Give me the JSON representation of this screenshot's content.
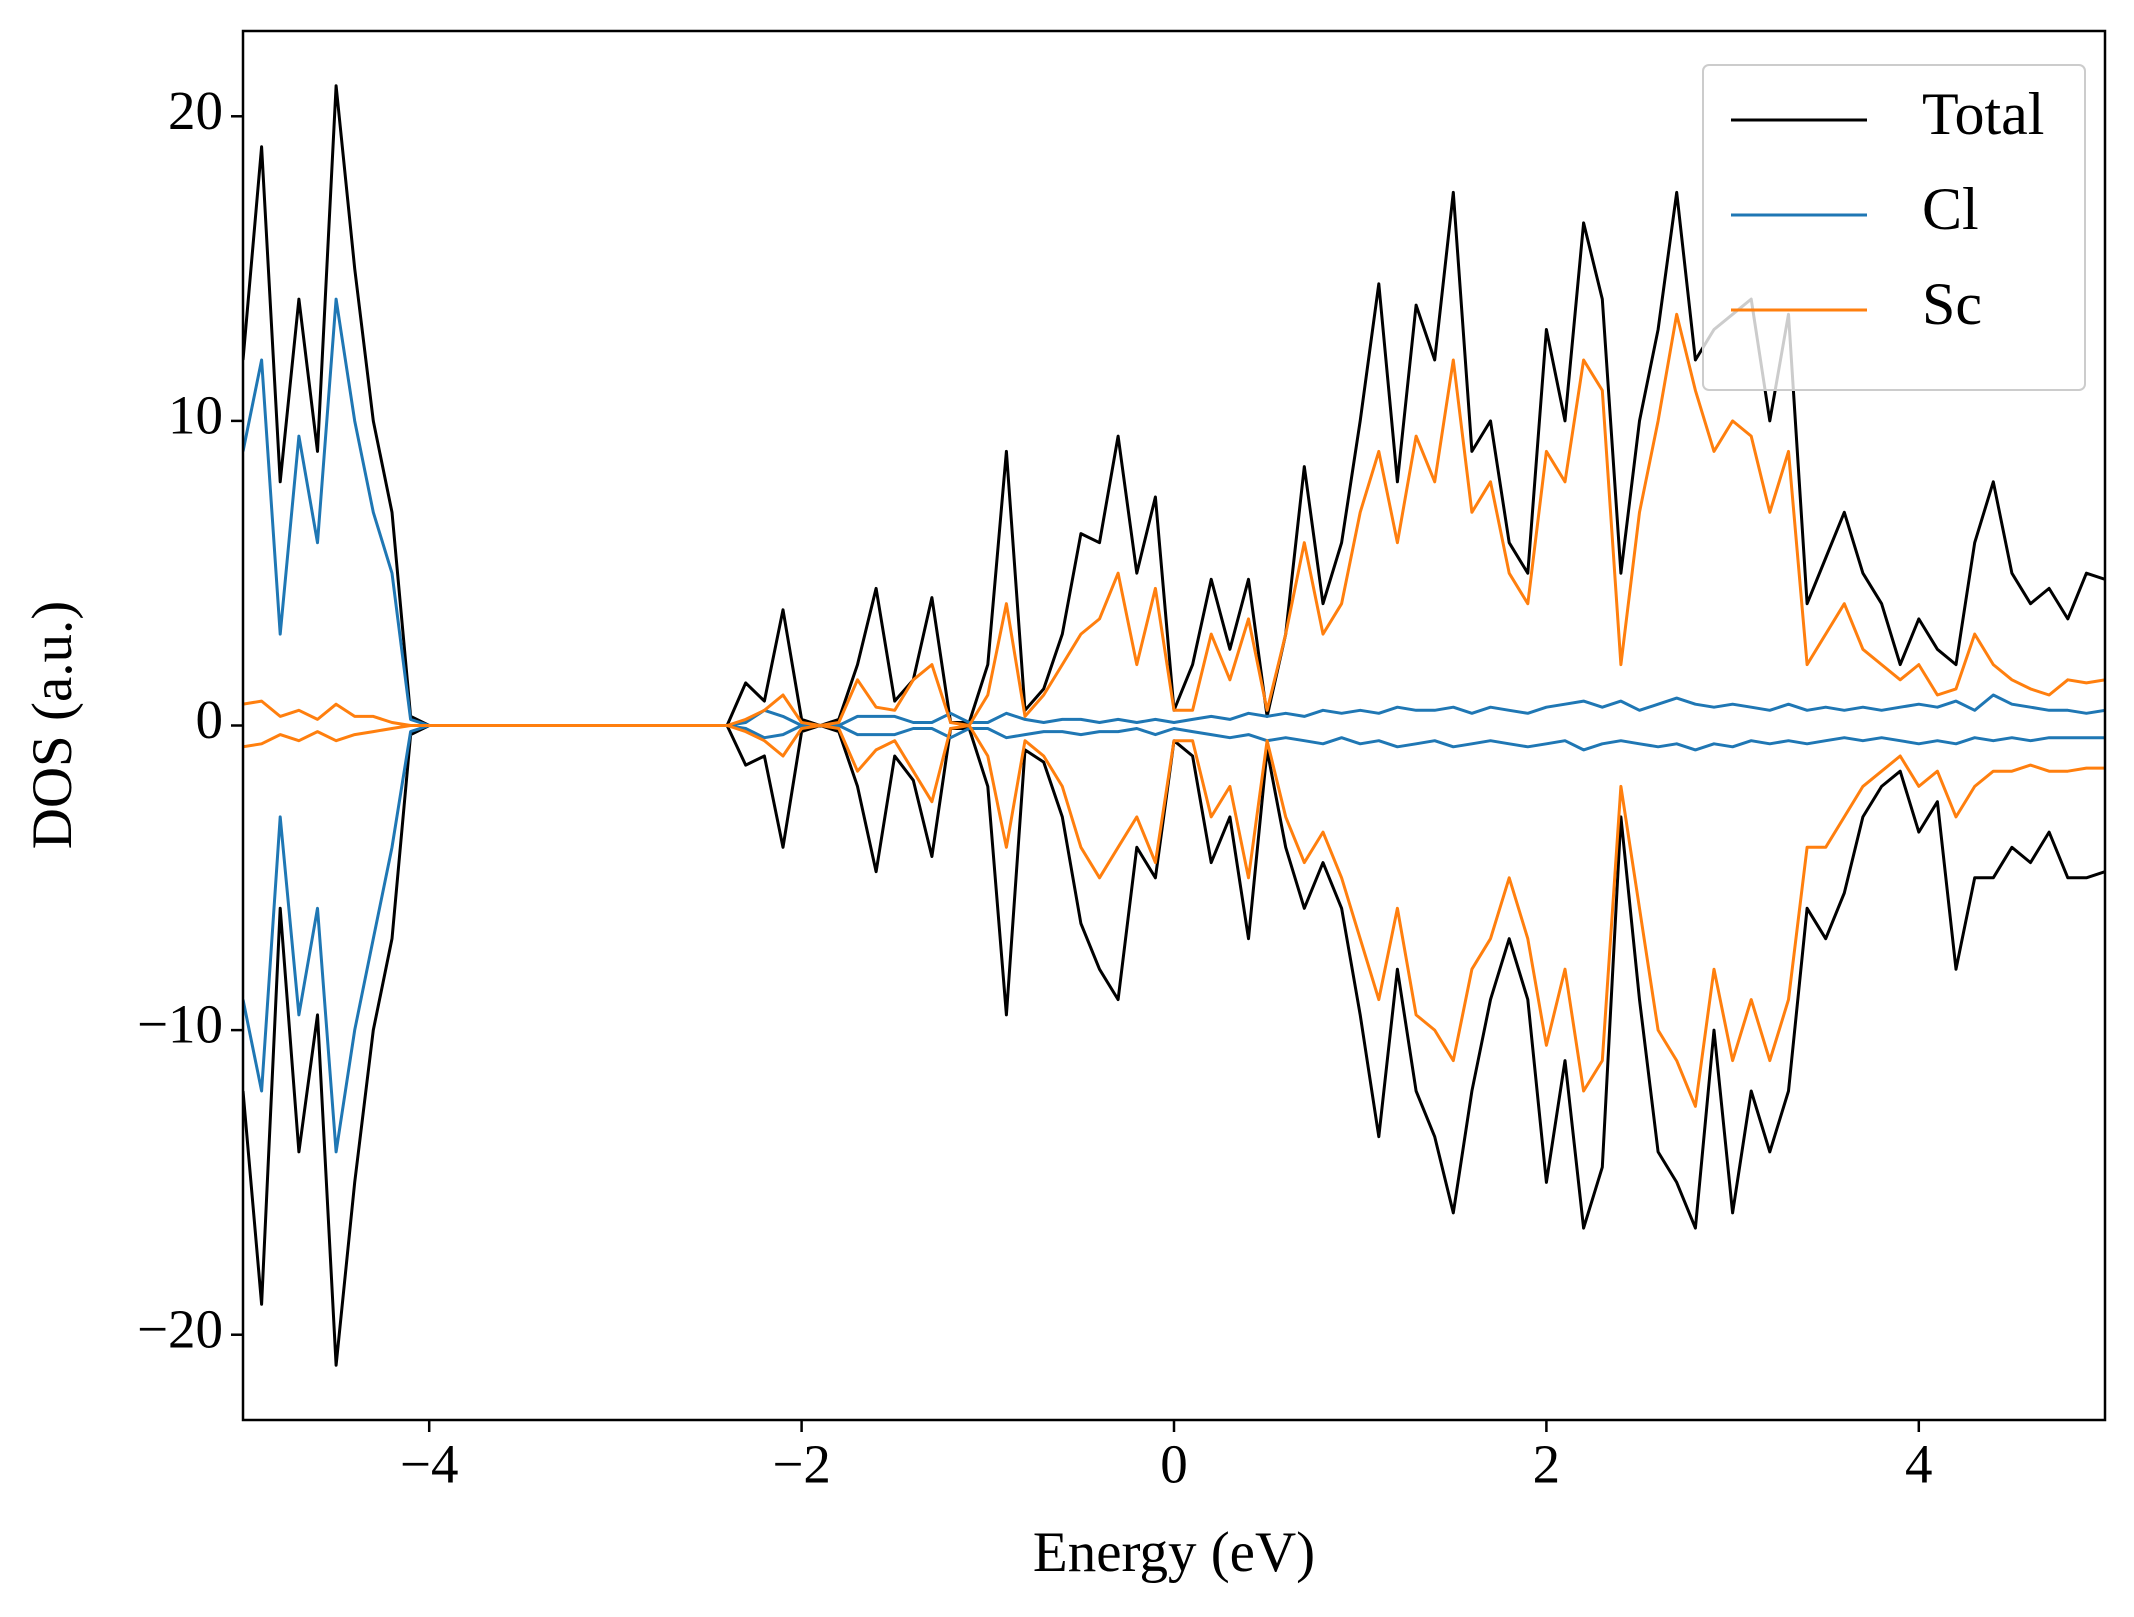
{
  "chart_data": {
    "type": "line",
    "xlabel": "Energy (eV)",
    "ylabel": "DOS (a.u.)",
    "xlim": [
      -5,
      5
    ],
    "ylim": [
      -22.8,
      22.8
    ],
    "xticks": [
      {
        "value": -4,
        "label": "−4"
      },
      {
        "value": -2,
        "label": "−2"
      },
      0,
      2,
      4
    ],
    "yticks": [
      {
        "value": -20,
        "label": "−20"
      },
      {
        "value": -10,
        "label": "−10"
      },
      0,
      10,
      20
    ],
    "legend": "upper right",
    "x": [
      -5,
      -4.9,
      -4.8,
      -4.7,
      -4.6,
      -4.5,
      -4.4,
      -4.3,
      -4.2,
      -4.1,
      -4,
      -3.9,
      -3.8,
      -3.7,
      -3.6,
      -3.5,
      -3.4,
      -3.3,
      -3.2,
      -3.1,
      -3,
      -2.9,
      -2.8,
      -2.7,
      -2.6,
      -2.5,
      -2.4,
      -2.3,
      -2.2,
      -2.1,
      -2,
      -1.9,
      -1.8,
      -1.7,
      -1.6,
      -1.5,
      -1.4,
      -1.3,
      -1.2,
      -1.1,
      -1,
      -0.9,
      -0.8,
      -0.7,
      -0.6,
      -0.5,
      -0.4,
      -0.3,
      -0.2,
      -0.1,
      0,
      0.1,
      0.2,
      0.3,
      0.4,
      0.5,
      0.6,
      0.7,
      0.8,
      0.9,
      1,
      1.1,
      1.2,
      1.3,
      1.4,
      1.5,
      1.6,
      1.7,
      1.8,
      1.9,
      2,
      2.1,
      2.2,
      2.3,
      2.4,
      2.5,
      2.6,
      2.7,
      2.8,
      2.9,
      3,
      3.1,
      3.2,
      3.3,
      3.4,
      3.5,
      3.6,
      3.7,
      3.8,
      3.9,
      4,
      4.1,
      4.2,
      4.3,
      4.4,
      4.5,
      4.6,
      4.7,
      4.8,
      4.9,
      5
    ],
    "series": [
      {
        "name": "Total",
        "color": "#000000",
        "values": [
          12,
          19,
          8,
          14,
          9,
          21,
          15,
          10,
          7,
          0.3,
          0,
          0,
          0,
          0,
          0,
          0,
          0,
          0,
          0,
          0,
          0,
          0,
          0,
          0,
          0,
          0,
          0,
          1.4,
          0.8,
          3.8,
          0.2,
          0,
          0.2,
          2,
          4.5,
          0.8,
          1.5,
          4.2,
          0.1,
          0.1,
          2,
          9,
          0.5,
          1.2,
          3,
          6.3,
          6,
          9.5,
          5,
          7.5,
          0.5,
          2,
          4.8,
          2.5,
          4.8,
          0.3,
          3,
          8.5,
          4,
          6,
          10,
          14.5,
          8,
          13.8,
          12,
          17.5,
          9,
          10,
          6,
          5,
          13,
          10,
          16.5,
          14,
          5,
          10,
          13,
          17.5,
          12,
          13,
          13.5,
          14,
          10,
          13.5,
          4,
          5.5,
          7,
          5,
          4,
          2,
          3.5,
          2.5,
          2,
          6,
          8,
          5,
          4,
          4.5,
          3.5,
          5,
          4.8
        ]
      },
      {
        "color": "#000000",
        "values": [
          -12,
          -19,
          -6,
          -14,
          -9.5,
          -21,
          -15,
          -10,
          -7,
          -0.3,
          0,
          0,
          0,
          0,
          0,
          0,
          0,
          0,
          0,
          0,
          0,
          0,
          0,
          0,
          0,
          0,
          0,
          -1.3,
          -1,
          -4,
          -0.2,
          0,
          -0.2,
          -2,
          -4.8,
          -1,
          -1.8,
          -4.3,
          -0.1,
          -0.1,
          -2,
          -9.5,
          -0.8,
          -1.2,
          -3,
          -6.5,
          -8,
          -9,
          -4,
          -5,
          -0.5,
          -1,
          -4.5,
          -3,
          -7,
          -0.8,
          -4,
          -6,
          -4.5,
          -6,
          -9.5,
          -13.5,
          -8,
          -12,
          -13.5,
          -16,
          -12,
          -9,
          -7,
          -9,
          -15,
          -11,
          -16.5,
          -14.5,
          -3,
          -9,
          -14,
          -15,
          -16.5,
          -10,
          -16,
          -12,
          -14,
          -12,
          -6,
          -7,
          -5.5,
          -3,
          -2,
          -1.5,
          -3.5,
          -2.5,
          -8,
          -5,
          -5,
          -4,
          -4.5,
          -3.5,
          -5,
          -5,
          -4.8
        ]
      },
      {
        "name": "Cl",
        "color": "#1f77b4",
        "values": [
          9,
          12,
          3,
          9.5,
          6,
          14,
          10,
          7,
          5,
          0.2,
          0,
          0,
          0,
          0,
          0,
          0,
          0,
          0,
          0,
          0,
          0,
          0,
          0,
          0,
          0,
          0,
          0,
          0.1,
          0.5,
          0.3,
          0,
          0,
          0,
          0.3,
          0.3,
          0.3,
          0.1,
          0.1,
          0.4,
          0.1,
          0.1,
          0.4,
          0.2,
          0.1,
          0.2,
          0.2,
          0.1,
          0.2,
          0.1,
          0.2,
          0.1,
          0.2,
          0.3,
          0.2,
          0.4,
          0.3,
          0.4,
          0.3,
          0.5,
          0.4,
          0.5,
          0.4,
          0.6,
          0.5,
          0.5,
          0.6,
          0.4,
          0.6,
          0.5,
          0.4,
          0.6,
          0.7,
          0.8,
          0.6,
          0.8,
          0.5,
          0.7,
          0.9,
          0.7,
          0.6,
          0.7,
          0.6,
          0.5,
          0.7,
          0.5,
          0.6,
          0.5,
          0.6,
          0.5,
          0.6,
          0.7,
          0.6,
          0.8,
          0.5,
          1,
          0.7,
          0.6,
          0.5,
          0.5,
          0.4,
          0.5
        ]
      },
      {
        "color": "#1f77b4",
        "values": [
          -9,
          -12,
          -3,
          -9.5,
          -6,
          -14,
          -10,
          -7,
          -4,
          -0.2,
          0,
          0,
          0,
          0,
          0,
          0,
          0,
          0,
          0,
          0,
          0,
          0,
          0,
          0,
          0,
          0,
          0,
          -0.1,
          -0.4,
          -0.3,
          0,
          0,
          0,
          -0.3,
          -0.3,
          -0.3,
          -0.1,
          -0.1,
          -0.4,
          -0.1,
          -0.1,
          -0.4,
          -0.3,
          -0.2,
          -0.2,
          -0.3,
          -0.2,
          -0.2,
          -0.1,
          -0.3,
          -0.1,
          -0.2,
          -0.3,
          -0.4,
          -0.3,
          -0.5,
          -0.4,
          -0.5,
          -0.6,
          -0.4,
          -0.6,
          -0.5,
          -0.7,
          -0.6,
          -0.5,
          -0.7,
          -0.6,
          -0.5,
          -0.6,
          -0.7,
          -0.6,
          -0.5,
          -0.8,
          -0.6,
          -0.5,
          -0.6,
          -0.7,
          -0.6,
          -0.8,
          -0.6,
          -0.7,
          -0.5,
          -0.6,
          -0.5,
          -0.6,
          -0.5,
          -0.4,
          -0.5,
          -0.4,
          -0.5,
          -0.6,
          -0.5,
          -0.6,
          -0.4,
          -0.5,
          -0.4,
          -0.5,
          -0.4,
          -0.4,
          -0.4,
          -0.4
        ]
      },
      {
        "name": "Sc",
        "color": "#ff7f0e",
        "values": [
          0.7,
          0.8,
          0.3,
          0.5,
          0.2,
          0.7,
          0.3,
          0.3,
          0.1,
          0,
          0,
          0,
          0,
          0,
          0,
          0,
          0,
          0,
          0,
          0,
          0,
          0,
          0,
          0,
          0,
          0,
          0,
          0.2,
          0.5,
          1,
          0.1,
          0,
          0.1,
          1.5,
          0.6,
          0.5,
          1.5,
          2,
          0.1,
          0,
          1,
          4,
          0.3,
          1,
          2,
          3,
          3.5,
          5,
          2,
          4.5,
          0.5,
          0.5,
          3,
          1.5,
          3.5,
          0.5,
          3,
          6,
          3,
          4,
          7,
          9,
          6,
          9.5,
          8,
          12,
          7,
          8,
          5,
          4,
          9,
          8,
          12,
          11,
          2,
          7,
          10,
          13.5,
          11,
          9,
          10,
          9.5,
          7,
          9,
          2,
          3,
          4,
          2.5,
          2,
          1.5,
          2,
          1,
          1.2,
          3,
          2,
          1.5,
          1.2,
          1,
          1.5,
          1.4,
          1.5
        ]
      },
      {
        "color": "#ff7f0e",
        "values": [
          -0.7,
          -0.6,
          -0.3,
          -0.5,
          -0.2,
          -0.5,
          -0.3,
          -0.2,
          -0.1,
          0,
          0,
          0,
          0,
          0,
          0,
          0,
          0,
          0,
          0,
          0,
          0,
          0,
          0,
          0,
          0,
          0,
          0,
          -0.2,
          -0.5,
          -1,
          -0.1,
          0,
          -0.1,
          -1.5,
          -0.8,
          -0.5,
          -1.5,
          -2.5,
          -0.1,
          0,
          -1,
          -4,
          -0.5,
          -1,
          -2,
          -4,
          -5,
          -4,
          -3,
          -4.5,
          -0.5,
          -0.5,
          -3,
          -2,
          -5,
          -0.5,
          -3,
          -4.5,
          -3.5,
          -5,
          -7,
          -9,
          -6,
          -9.5,
          -10,
          -11,
          -8,
          -7,
          -5,
          -7,
          -10.5,
          -8,
          -12,
          -11,
          -2,
          -6,
          -10,
          -11,
          -12.5,
          -8,
          -11,
          -9,
          -11,
          -9,
          -4,
          -4,
          -3,
          -2,
          -1.5,
          -1,
          -2,
          -1.5,
          -3,
          -2,
          -1.5,
          -1.5,
          -1.3,
          -1.5,
          -1.5,
          -1.4,
          -1.4
        ]
      }
    ]
  }
}
